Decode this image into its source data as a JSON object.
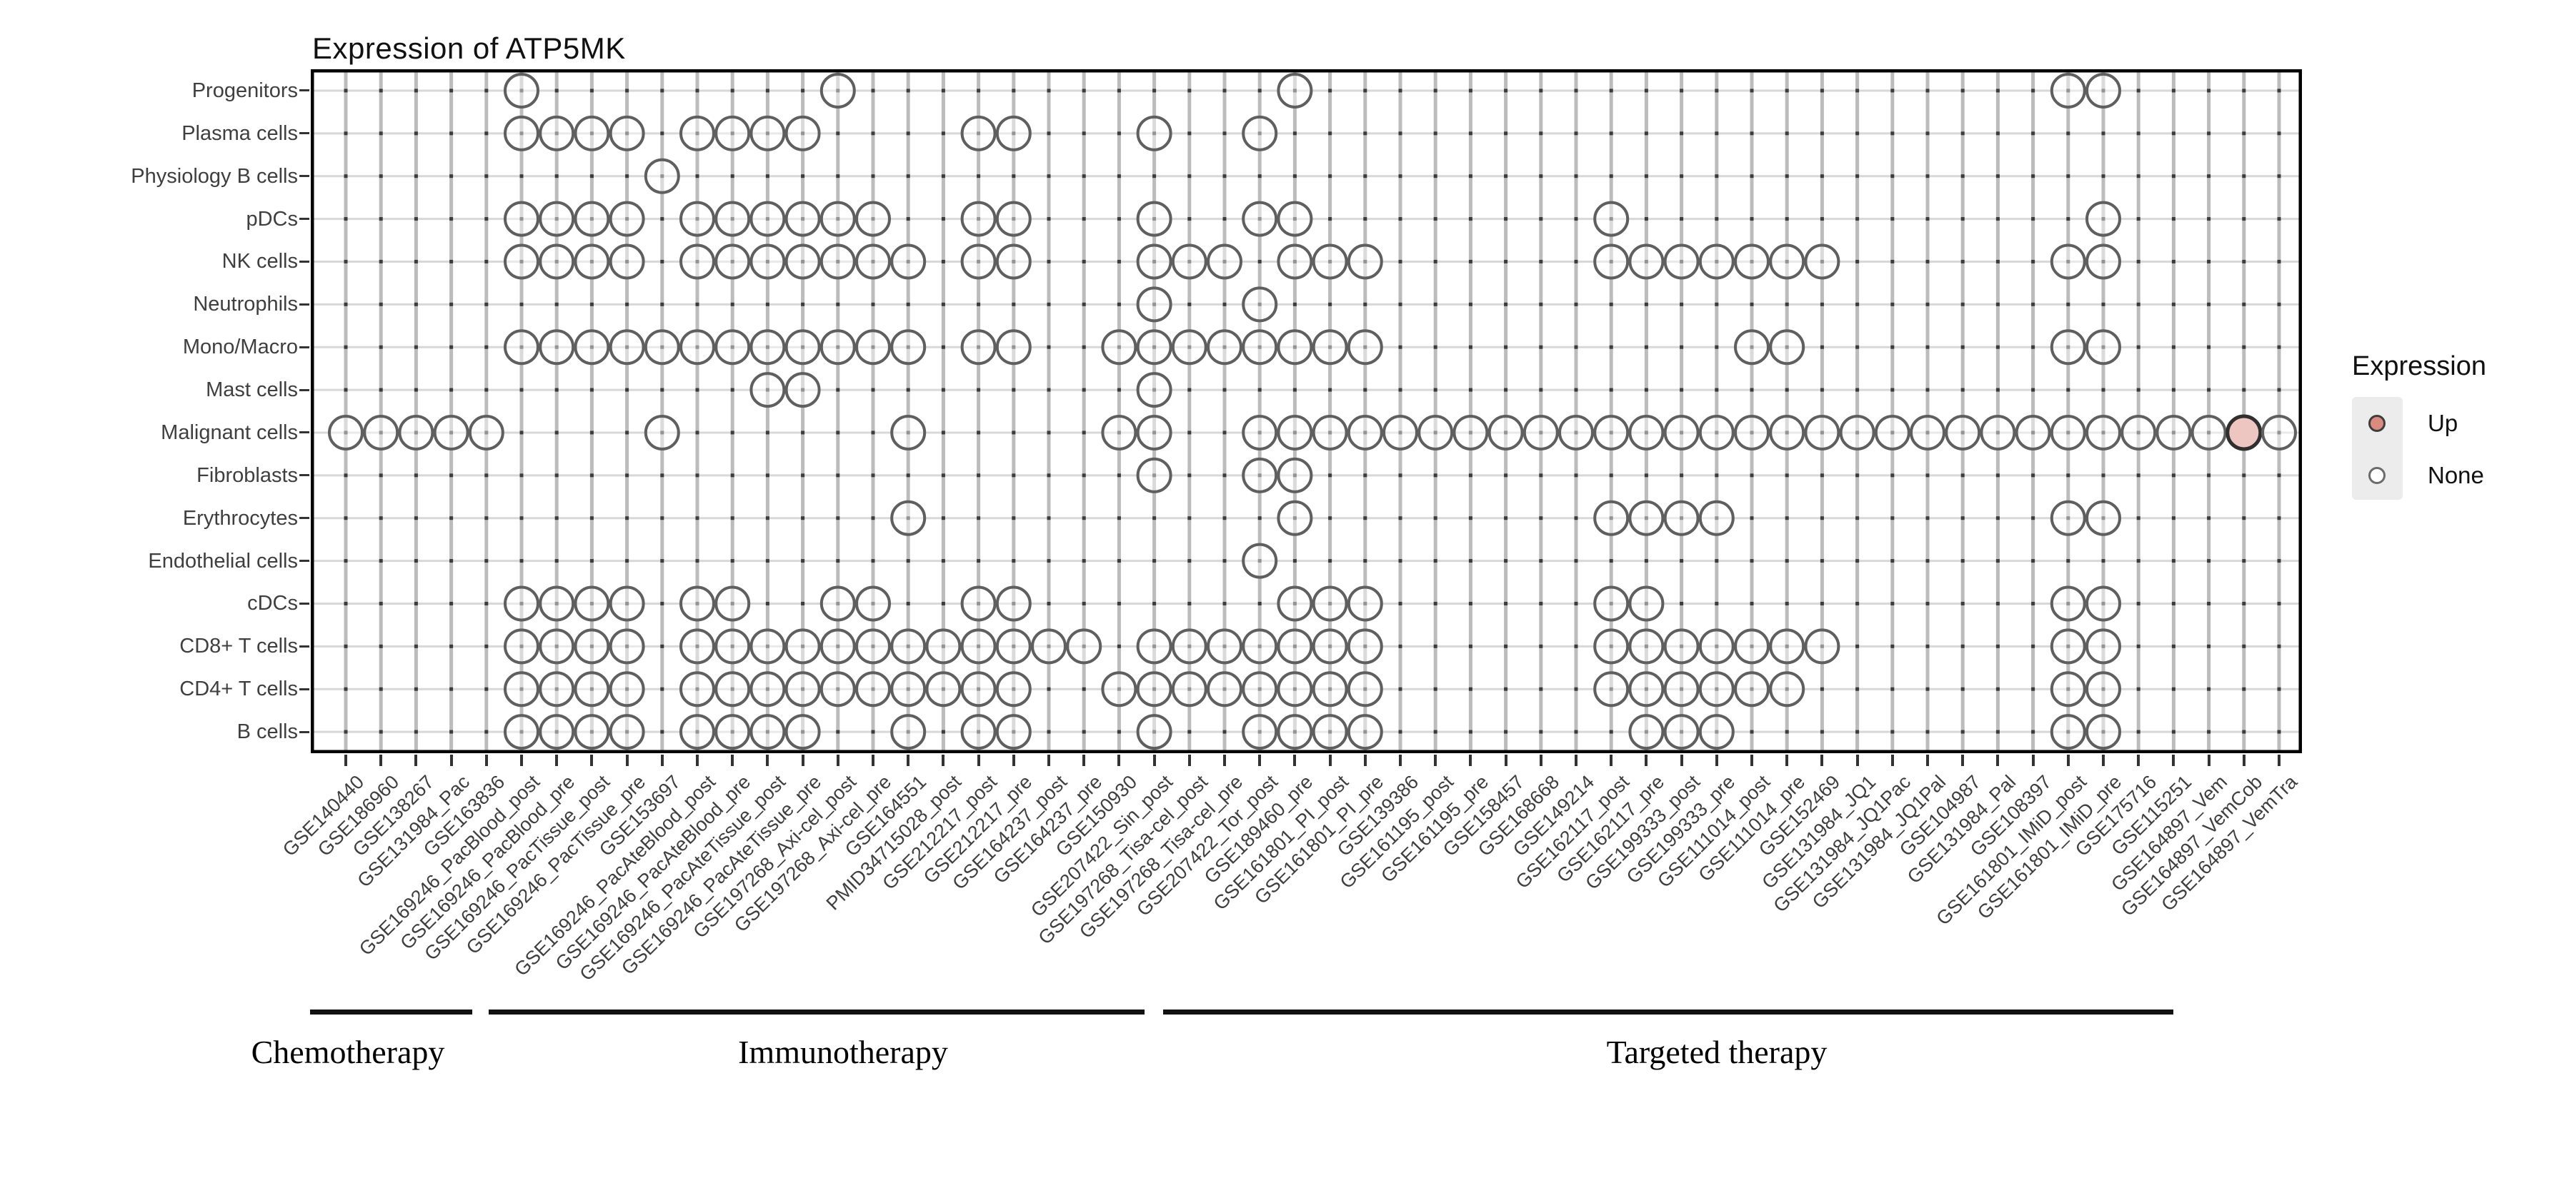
{
  "title": "Expression of ATP5MK",
  "legend": {
    "title": "Expression",
    "items": [
      {
        "label": "Up",
        "key_fill": "#d98b7f",
        "key_stroke": "#3d3d3d"
      },
      {
        "label": "None",
        "key_fill": "#ffffff",
        "key_stroke": "#6b6b6b"
      }
    ]
  },
  "colors": {
    "up_fill": "#eec6c1",
    "up_stroke": "#2f2f2f",
    "none_fill": "rgba(255,255,255,0.45)",
    "none_stroke": "#5f5f5f",
    "grid_h": "#d8d8d8",
    "grid_v": "#bcbcbc",
    "grid_dot": "#3c3c3c",
    "axis_text": "#3f3f3f",
    "plot_border": "#000000",
    "legend_key_bg": "#ececec"
  },
  "chart_data": {
    "type": "heatmap",
    "title": "Expression of ATP5MK",
    "legend": {
      "title": "Expression",
      "entries": [
        "Up",
        "None"
      ],
      "position": "right"
    },
    "grid": true,
    "x_categories": [
      "GSE140440",
      "GSE186960",
      "GSE138267",
      "GSE131984_Pac",
      "GSE163836",
      "GSE169246_PacBlood_post",
      "GSE169246_PacBlood_pre",
      "GSE169246_PacTissue_post",
      "GSE169246_PacTissue_pre",
      "GSE153697",
      "GSE169246_PacAteBlood_post",
      "GSE169246_PacAteBlood_pre",
      "GSE169246_PacAteTissue_post",
      "GSE169246_PacAteTissue_pre",
      "GSE197268_Axi-cel_post",
      "GSE197268_Axi-cel_pre",
      "GSE164551",
      "PMID34715028_post",
      "GSE212217_post",
      "GSE212217_pre",
      "GSE164237_post",
      "GSE164237_pre",
      "GSE150930",
      "GSE207422_Sin_post",
      "GSE197268_Tisa-cel_post",
      "GSE197268_Tisa-cel_pre",
      "GSE207422_Tor_post",
      "GSE189460_pre",
      "GSE161801_PI_post",
      "GSE161801_PI_pre",
      "GSE139386",
      "GSE161195_post",
      "GSE161195_pre",
      "GSE158457",
      "GSE168668",
      "GSE149214",
      "GSE162117_post",
      "GSE162117_pre",
      "GSE199333_post",
      "GSE199333_pre",
      "GSE111014_post",
      "GSE111014_pre",
      "GSE152469",
      "GSE131984_JQ1",
      "GSE131984_JQ1Pac",
      "GSE131984_JQ1Pal",
      "GSE104987",
      "GSE131984_Pal",
      "GSE108397",
      "GSE161801_IMiD_post",
      "GSE161801_IMiD_pre",
      "GSE175716",
      "GSE115251",
      "GSE164897_Vem",
      "GSE164897_VemCob",
      "GSE164897_VemTra"
    ],
    "y_categories": [
      "Progenitors",
      "Plasma cells",
      "Physiology B cells",
      "pDCs",
      "NK cells",
      "Neutrophils",
      "Mono/Macro",
      "Mast cells",
      "Malignant cells",
      "Fibroblasts",
      "Erythrocytes",
      "Endothelial cells",
      "cDCs",
      "CD8+ T cells",
      "CD4+ T cells",
      "B cells"
    ],
    "presence": {
      "Progenitors": [
        6,
        15,
        28,
        50,
        51
      ],
      "Plasma cells": [
        6,
        7,
        8,
        9,
        11,
        12,
        13,
        14,
        19,
        20,
        24,
        27
      ],
      "Physiology B cells": [
        10
      ],
      "pDCs": [
        6,
        7,
        8,
        9,
        11,
        12,
        13,
        14,
        15,
        16,
        19,
        20,
        24,
        27,
        28,
        37,
        51
      ],
      "NK cells": [
        6,
        7,
        8,
        9,
        11,
        12,
        13,
        14,
        15,
        16,
        17,
        19,
        20,
        24,
        25,
        26,
        28,
        29,
        30,
        37,
        38,
        39,
        40,
        41,
        42,
        43,
        50,
        51
      ],
      "Neutrophils": [
        24,
        27
      ],
      "Mono/Macro": [
        6,
        7,
        8,
        9,
        10,
        11,
        12,
        13,
        14,
        15,
        16,
        17,
        19,
        20,
        23,
        24,
        25,
        26,
        27,
        28,
        29,
        30,
        41,
        42,
        50,
        51
      ],
      "Mast cells": [
        13,
        14,
        24
      ],
      "Malignant cells": [
        1,
        2,
        3,
        4,
        5,
        10,
        17,
        23,
        24,
        27,
        28,
        29,
        30,
        31,
        32,
        33,
        34,
        35,
        36,
        37,
        38,
        39,
        40,
        41,
        42,
        43,
        44,
        45,
        46,
        47,
        48,
        49,
        50,
        51,
        52,
        53,
        54,
        55,
        56
      ],
      "Fibroblasts": [
        24,
        27,
        28
      ],
      "Erythrocytes": [
        17,
        28,
        37,
        38,
        39,
        40,
        50,
        51
      ],
      "Endothelial cells": [
        27
      ],
      "cDCs": [
        6,
        7,
        8,
        9,
        11,
        12,
        15,
        16,
        19,
        20,
        28,
        29,
        30,
        37,
        38,
        50,
        51
      ],
      "CD8+ T cells": [
        6,
        7,
        8,
        9,
        11,
        12,
        13,
        14,
        15,
        16,
        17,
        18,
        19,
        20,
        21,
        22,
        24,
        25,
        26,
        27,
        28,
        29,
        30,
        37,
        38,
        39,
        40,
        41,
        42,
        43,
        50,
        51
      ],
      "CD4+ T cells": [
        6,
        7,
        8,
        9,
        11,
        12,
        13,
        14,
        15,
        16,
        17,
        18,
        19,
        20,
        23,
        24,
        25,
        26,
        27,
        28,
        29,
        30,
        37,
        38,
        39,
        40,
        41,
        42,
        50,
        51
      ],
      "B cells": [
        6,
        7,
        8,
        9,
        11,
        12,
        13,
        14,
        17,
        19,
        20,
        24,
        27,
        28,
        29,
        30,
        38,
        39,
        40,
        50,
        51
      ]
    },
    "up_points": [
      {
        "row": "Malignant cells",
        "col": 55,
        "dataset": "GSE164897_VemCob",
        "value": "Up"
      }
    ],
    "x_groups": [
      {
        "label": "Chemotherapy",
        "start": 1,
        "end": 4
      },
      {
        "label": "Immunotherapy",
        "start": 5,
        "end": 24
      },
      {
        "label": "Targeted therapy",
        "start": 25,
        "end": 56
      }
    ]
  }
}
